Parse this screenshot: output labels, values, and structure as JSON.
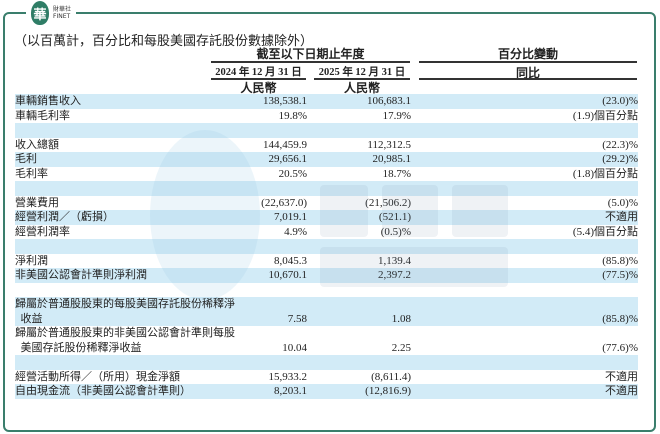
{
  "logo": {
    "mark": "華",
    "name": "財華社",
    "en": "FINET"
  },
  "watermark": {
    "text": "財華社",
    "en": "FINET"
  },
  "note": "（以百萬計，百分比和每股美國存託股份數據除外）",
  "header": {
    "period": "截至以下日期止年度",
    "change": "百分比變動",
    "col1": "2024 年 12 月 31 日",
    "col2": "2025 年 12 月 31 日",
    "yoy": "同比",
    "cur1": "人民幣",
    "cur2": "人民幣"
  },
  "colors": {
    "row_blue": "#d2ebf7",
    "frame": "#3a7e6c"
  },
  "rows": [
    {
      "label": "車輛銷售收入",
      "v2024": "138,538.1",
      "v2025": "106,683.1",
      "chg": "(23.0)%"
    },
    {
      "label": "車輛毛利率",
      "v2024": "19.8%",
      "v2025": "17.9%",
      "chg": "(1.9)個百分點"
    },
    {
      "label": "",
      "v2024": "",
      "v2025": "",
      "chg": ""
    },
    {
      "label": "收入總額",
      "v2024": "144,459.9",
      "v2025": "112,312.5",
      "chg": "(22.3)%"
    },
    {
      "label": "毛利",
      "v2024": "29,656.1",
      "v2025": "20,985.1",
      "chg": "(29.2)%"
    },
    {
      "label": "毛利率",
      "v2024": "20.5%",
      "v2025": "18.7%",
      "chg": "(1.8)個百分點"
    },
    {
      "label": "",
      "v2024": "",
      "v2025": "",
      "chg": ""
    },
    {
      "label": "營業費用",
      "v2024": "(22,637.0)",
      "v2025": "(21,506.2)",
      "chg": "(5.0)%"
    },
    {
      "label": "經營利潤／（虧損）",
      "v2024": "7,019.1",
      "v2025": "(521.1)",
      "chg": "不適用"
    },
    {
      "label": "經營利潤率",
      "v2024": "4.9%",
      "v2025": "(0.5)%",
      "chg": "(5.4)個百分點"
    },
    {
      "label": "",
      "v2024": "",
      "v2025": "",
      "chg": ""
    },
    {
      "label": "淨利潤",
      "v2024": "8,045.3",
      "v2025": "1,139.4",
      "chg": "(85.8)%"
    },
    {
      "label": "非美國公認會計準則淨利潤",
      "v2024": "10,670.1",
      "v2025": "2,397.2",
      "chg": "(77.5)%"
    },
    {
      "label": "",
      "v2024": "",
      "v2025": "",
      "chg": ""
    },
    {
      "label": "歸屬於普通股股東的每股美國存託股份稀釋淨\n  收益",
      "v2024": "7.58",
      "v2025": "1.08",
      "chg": "(85.8)%"
    },
    {
      "label": "歸屬於普通股股東的非美國公認會計準則每股\n  美國存託股份稀釋淨收益",
      "v2024": "10.04",
      "v2025": "2.25",
      "chg": "(77.6)%"
    },
    {
      "label": "",
      "v2024": "",
      "v2025": "",
      "chg": ""
    },
    {
      "label": "經營活動所得／（所用）現金淨額",
      "v2024": "15,933.2",
      "v2025": "(8,611.4)",
      "chg": "不適用"
    },
    {
      "label": "自由現金流（非美國公認會計準則）",
      "v2024": "8,203.1",
      "v2025": "(12,816.9)",
      "chg": "不適用"
    }
  ]
}
